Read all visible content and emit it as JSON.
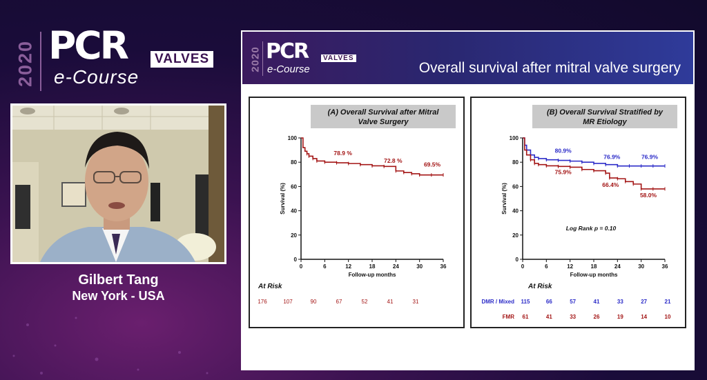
{
  "branding": {
    "year": "2020",
    "pcr": "PCR",
    "valves": "VALVES",
    "ecourse": "e-Course"
  },
  "speaker": {
    "name": "Gilbert Tang",
    "location": "New York - USA"
  },
  "slide": {
    "brand": {
      "year": "2020",
      "pcr": "PCR",
      "valves": "VALVES",
      "ecourse": "e-Course"
    },
    "title": "Overall survival after mitral valve surgery"
  },
  "colors": {
    "red": "#a31515",
    "blue": "#2b2bc8",
    "panel_title_bg": "#c9c9c9"
  },
  "chart_data": [
    {
      "type": "line",
      "title": "(A) Overall Survival after Mitral Valve Surgery",
      "xlabel": "Follow-up months",
      "ylabel": "Survival (%)",
      "xlim": [
        0,
        36
      ],
      "ylim": [
        0,
        100
      ],
      "xticks": [
        0,
        6,
        12,
        18,
        24,
        30,
        36
      ],
      "yticks": [
        0,
        20,
        40,
        60,
        80,
        100
      ],
      "series": [
        {
          "color": "#a31515",
          "x": [
            0,
            0.5,
            1,
            1.5,
            2,
            3,
            4,
            6,
            9,
            12,
            15,
            18,
            21,
            24,
            26,
            28,
            30,
            33,
            36
          ],
          "y": [
            100,
            92,
            89,
            87,
            85,
            83,
            81,
            80,
            79.5,
            78.9,
            78,
            77,
            76.5,
            72.8,
            71.5,
            70.5,
            69.5,
            69.5,
            69.5
          ]
        }
      ],
      "annotations": [
        {
          "text": "78.9 %",
          "x": 12,
          "y": 78.9
        },
        {
          "text": "72.8 %",
          "x": 24,
          "y": 72.8
        },
        {
          "text": "69.5%",
          "x": 36,
          "y": 69.5
        }
      ],
      "at_risk": {
        "label": "At Risk",
        "rows": [
          {
            "name": "",
            "color": "#a31515",
            "values": [
              "176",
              "107",
              "90",
              "67",
              "52",
              "41",
              "31"
            ]
          }
        ]
      }
    },
    {
      "type": "line",
      "title": "(B) Overall Survival Stratified by MR Etiology",
      "xlabel": "Follow-up months",
      "ylabel": "Survival (%)",
      "xlim": [
        0,
        36
      ],
      "ylim": [
        0,
        100
      ],
      "xticks": [
        0,
        6,
        12,
        18,
        24,
        30,
        36
      ],
      "yticks": [
        0,
        20,
        40,
        60,
        80,
        100
      ],
      "series": [
        {
          "color": "#2b2bc8",
          "x": [
            0,
            0.5,
            1,
            2,
            3,
            4,
            6,
            9,
            12,
            15,
            18,
            21,
            24,
            27,
            30,
            33,
            36
          ],
          "y": [
            100,
            94,
            90,
            86,
            84,
            83,
            82,
            81.5,
            80.9,
            80,
            79,
            78,
            76.9,
            76.9,
            76.9,
            76.9,
            76.9
          ]
        },
        {
          "color": "#a31515",
          "x": [
            0,
            0.5,
            1,
            2,
            3,
            4,
            6,
            9,
            12,
            15,
            18,
            21,
            22,
            24,
            26,
            28,
            30,
            33,
            36
          ],
          "y": [
            100,
            90,
            86,
            82,
            79,
            78,
            77,
            76.5,
            75.9,
            74,
            73,
            71,
            67,
            66.4,
            64,
            62,
            58,
            58,
            58
          ]
        }
      ],
      "annotations": [
        {
          "text": "80.9%",
          "x": 12,
          "y": 80.9,
          "color": "#2b2bc8"
        },
        {
          "text": "76.9%",
          "x": 24,
          "y": 76.9,
          "color": "#2b2bc8"
        },
        {
          "text": "76.9%",
          "x": 36,
          "y": 76.9,
          "color": "#2b2bc8"
        },
        {
          "text": "75.9%",
          "x": 12,
          "y": 75.9,
          "color": "#a31515"
        },
        {
          "text": "66.4%",
          "x": 24,
          "y": 66.4,
          "color": "#a31515"
        },
        {
          "text": "58.0%",
          "x": 36,
          "y": 58.0,
          "color": "#a31515"
        },
        {
          "text": "Log Rank p = 0.10",
          "x": 18,
          "y": 24,
          "color": "#111"
        }
      ],
      "at_risk": {
        "label": "At Risk",
        "rows": [
          {
            "name": "DMR / Mixed",
            "color": "#2b2bc8",
            "values": [
              "115",
              "66",
              "57",
              "41",
              "33",
              "27",
              "21"
            ]
          },
          {
            "name": "FMR",
            "color": "#a31515",
            "values": [
              "61",
              "41",
              "33",
              "26",
              "19",
              "14",
              "10"
            ]
          }
        ]
      }
    }
  ]
}
